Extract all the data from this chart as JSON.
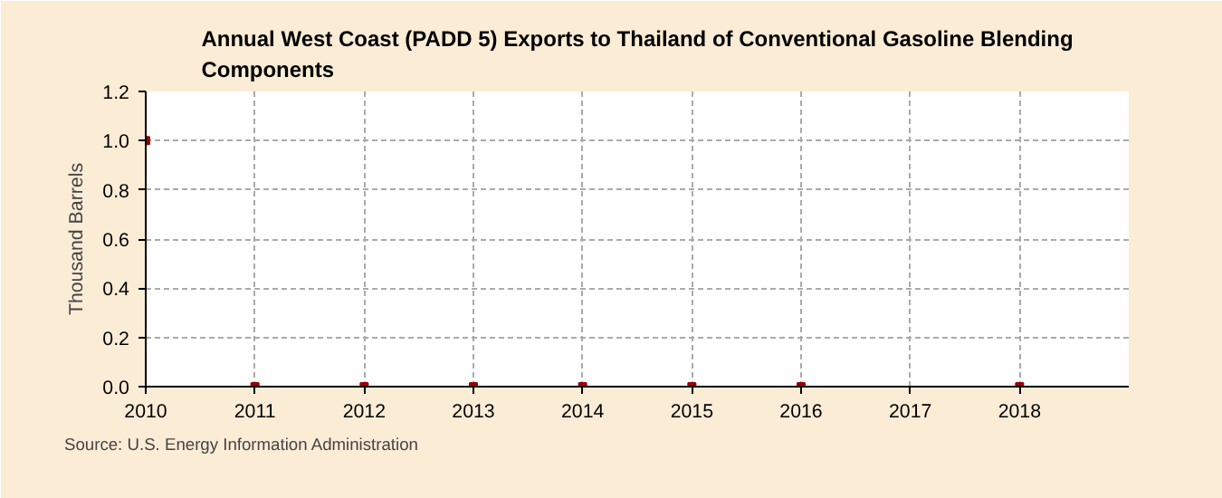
{
  "chart_data": {
    "type": "scatter",
    "title": "Annual West Coast (PADD 5) Exports to Thailand of Conventional Gasoline Blending Components",
    "ylabel": "Thousand Barrels",
    "annotations": [
      "Source: U.S. Energy Information Administration"
    ],
    "x": [
      2010,
      2011,
      2012,
      2013,
      2014,
      2015,
      2016,
      2017,
      2018
    ],
    "series": [
      {
        "color": "#990000",
        "values": [
          1.0,
          0,
          0,
          0,
          0,
          0,
          0,
          null,
          0
        ]
      }
    ],
    "xlim": [
      2010,
      2019
    ],
    "xticks": [
      2010,
      2011,
      2012,
      2013,
      2014,
      2015,
      2016,
      2017,
      2018
    ],
    "ylim": [
      0,
      1.2
    ],
    "yticks": [
      {
        "value": 0,
        "label": "0.0"
      },
      {
        "value": 0.2,
        "label": "0.2"
      },
      {
        "value": 0.4,
        "label": "0.4"
      },
      {
        "value": 0.6,
        "label": "0.6"
      },
      {
        "value": 0.8,
        "label": "0.8"
      },
      {
        "value": 1.0,
        "label": "1.0"
      },
      {
        "value": 1.2,
        "label": "1.2"
      }
    ],
    "grid": true,
    "marker": "square"
  }
}
